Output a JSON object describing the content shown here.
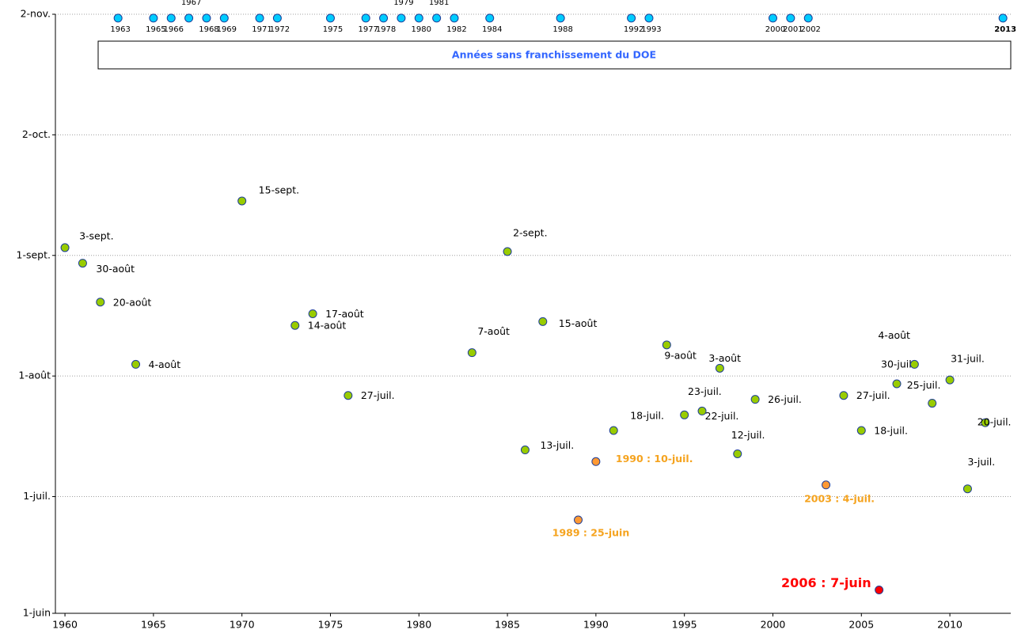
{
  "chart_data": {
    "type": "scatter",
    "annotation": "Années sans franchissement du DOE",
    "xlim": [
      1959.46,
      2013.44
    ],
    "xticks": [
      1960,
      1965,
      1970,
      1975,
      1980,
      1985,
      1990,
      1995,
      2000,
      2005,
      2010
    ],
    "ylim": [
      152,
      306
    ],
    "yticks": [
      {
        "value": 152,
        "label": "1-juin"
      },
      {
        "value": 182,
        "label": "1-juil."
      },
      {
        "value": 213,
        "label": "1-août"
      },
      {
        "value": 244,
        "label": "1-sept."
      },
      {
        "value": 275,
        "label": "2-oct."
      },
      {
        "value": 306,
        "label": "2-nov."
      }
    ],
    "grid": true,
    "series": [
      {
        "color": "#99cc00",
        "x": [
          1960,
          1961,
          1962,
          1964,
          1970,
          1973,
          1974,
          1976,
          1983,
          1985,
          1986,
          1987,
          1991,
          1994,
          1995,
          1996,
          1997,
          1998,
          1999,
          2004,
          2005,
          2007,
          2008,
          2009,
          2010,
          2011,
          2012
        ],
        "values": [
          246,
          242,
          232,
          216,
          258,
          226,
          229,
          208,
          219,
          245,
          194,
          227,
          199,
          221,
          203,
          204,
          215,
          193,
          207,
          208,
          199,
          211,
          216,
          206,
          212,
          184,
          201
        ],
        "value_labels": [
          "3-sept.",
          "30-août",
          "20-août",
          "4-août",
          "15-sept.",
          "14-août",
          "17-août",
          "27-juil.",
          "7-août",
          "2-sept.",
          "13-juil.",
          "15-août",
          "18-juil.",
          "9-août",
          "22-juil.",
          "23-juil.",
          "3-août",
          "12-juil.",
          "26-juil.",
          "27-juil.",
          "18-juil.",
          "30-juil.",
          "4-août",
          "25-juil.",
          "31-juil.",
          "3-juil.",
          "20-juil."
        ]
      },
      {
        "color": "#ff9933",
        "label_color": "#f5a31e",
        "x": [
          1989,
          1990,
          2003
        ],
        "values": [
          176,
          191,
          185
        ],
        "value_labels": [
          "1989 : 25-juin",
          "1990 : 10-juil.",
          "2003 : 4-juil."
        ]
      },
      {
        "color": "#ff0000",
        "label_color": "#ff0000",
        "x": [
          2006
        ],
        "values": [
          158
        ],
        "value_labels": [
          "2006 : 7-juin"
        ]
      },
      {
        "color": "#00ccff",
        "x": [
          1963,
          1965,
          1966,
          1967,
          1968,
          1969,
          1971,
          1972,
          1975,
          1977,
          1978,
          1979,
          1980,
          1981,
          1982,
          1984,
          1988,
          1992,
          1993,
          2000,
          2001,
          2002,
          2013
        ],
        "values": [
          305,
          305,
          305,
          305,
          305,
          305,
          305,
          305,
          305,
          305,
          305,
          305,
          305,
          305,
          305,
          305,
          305,
          305,
          305,
          305,
          305,
          305,
          305
        ]
      }
    ]
  }
}
